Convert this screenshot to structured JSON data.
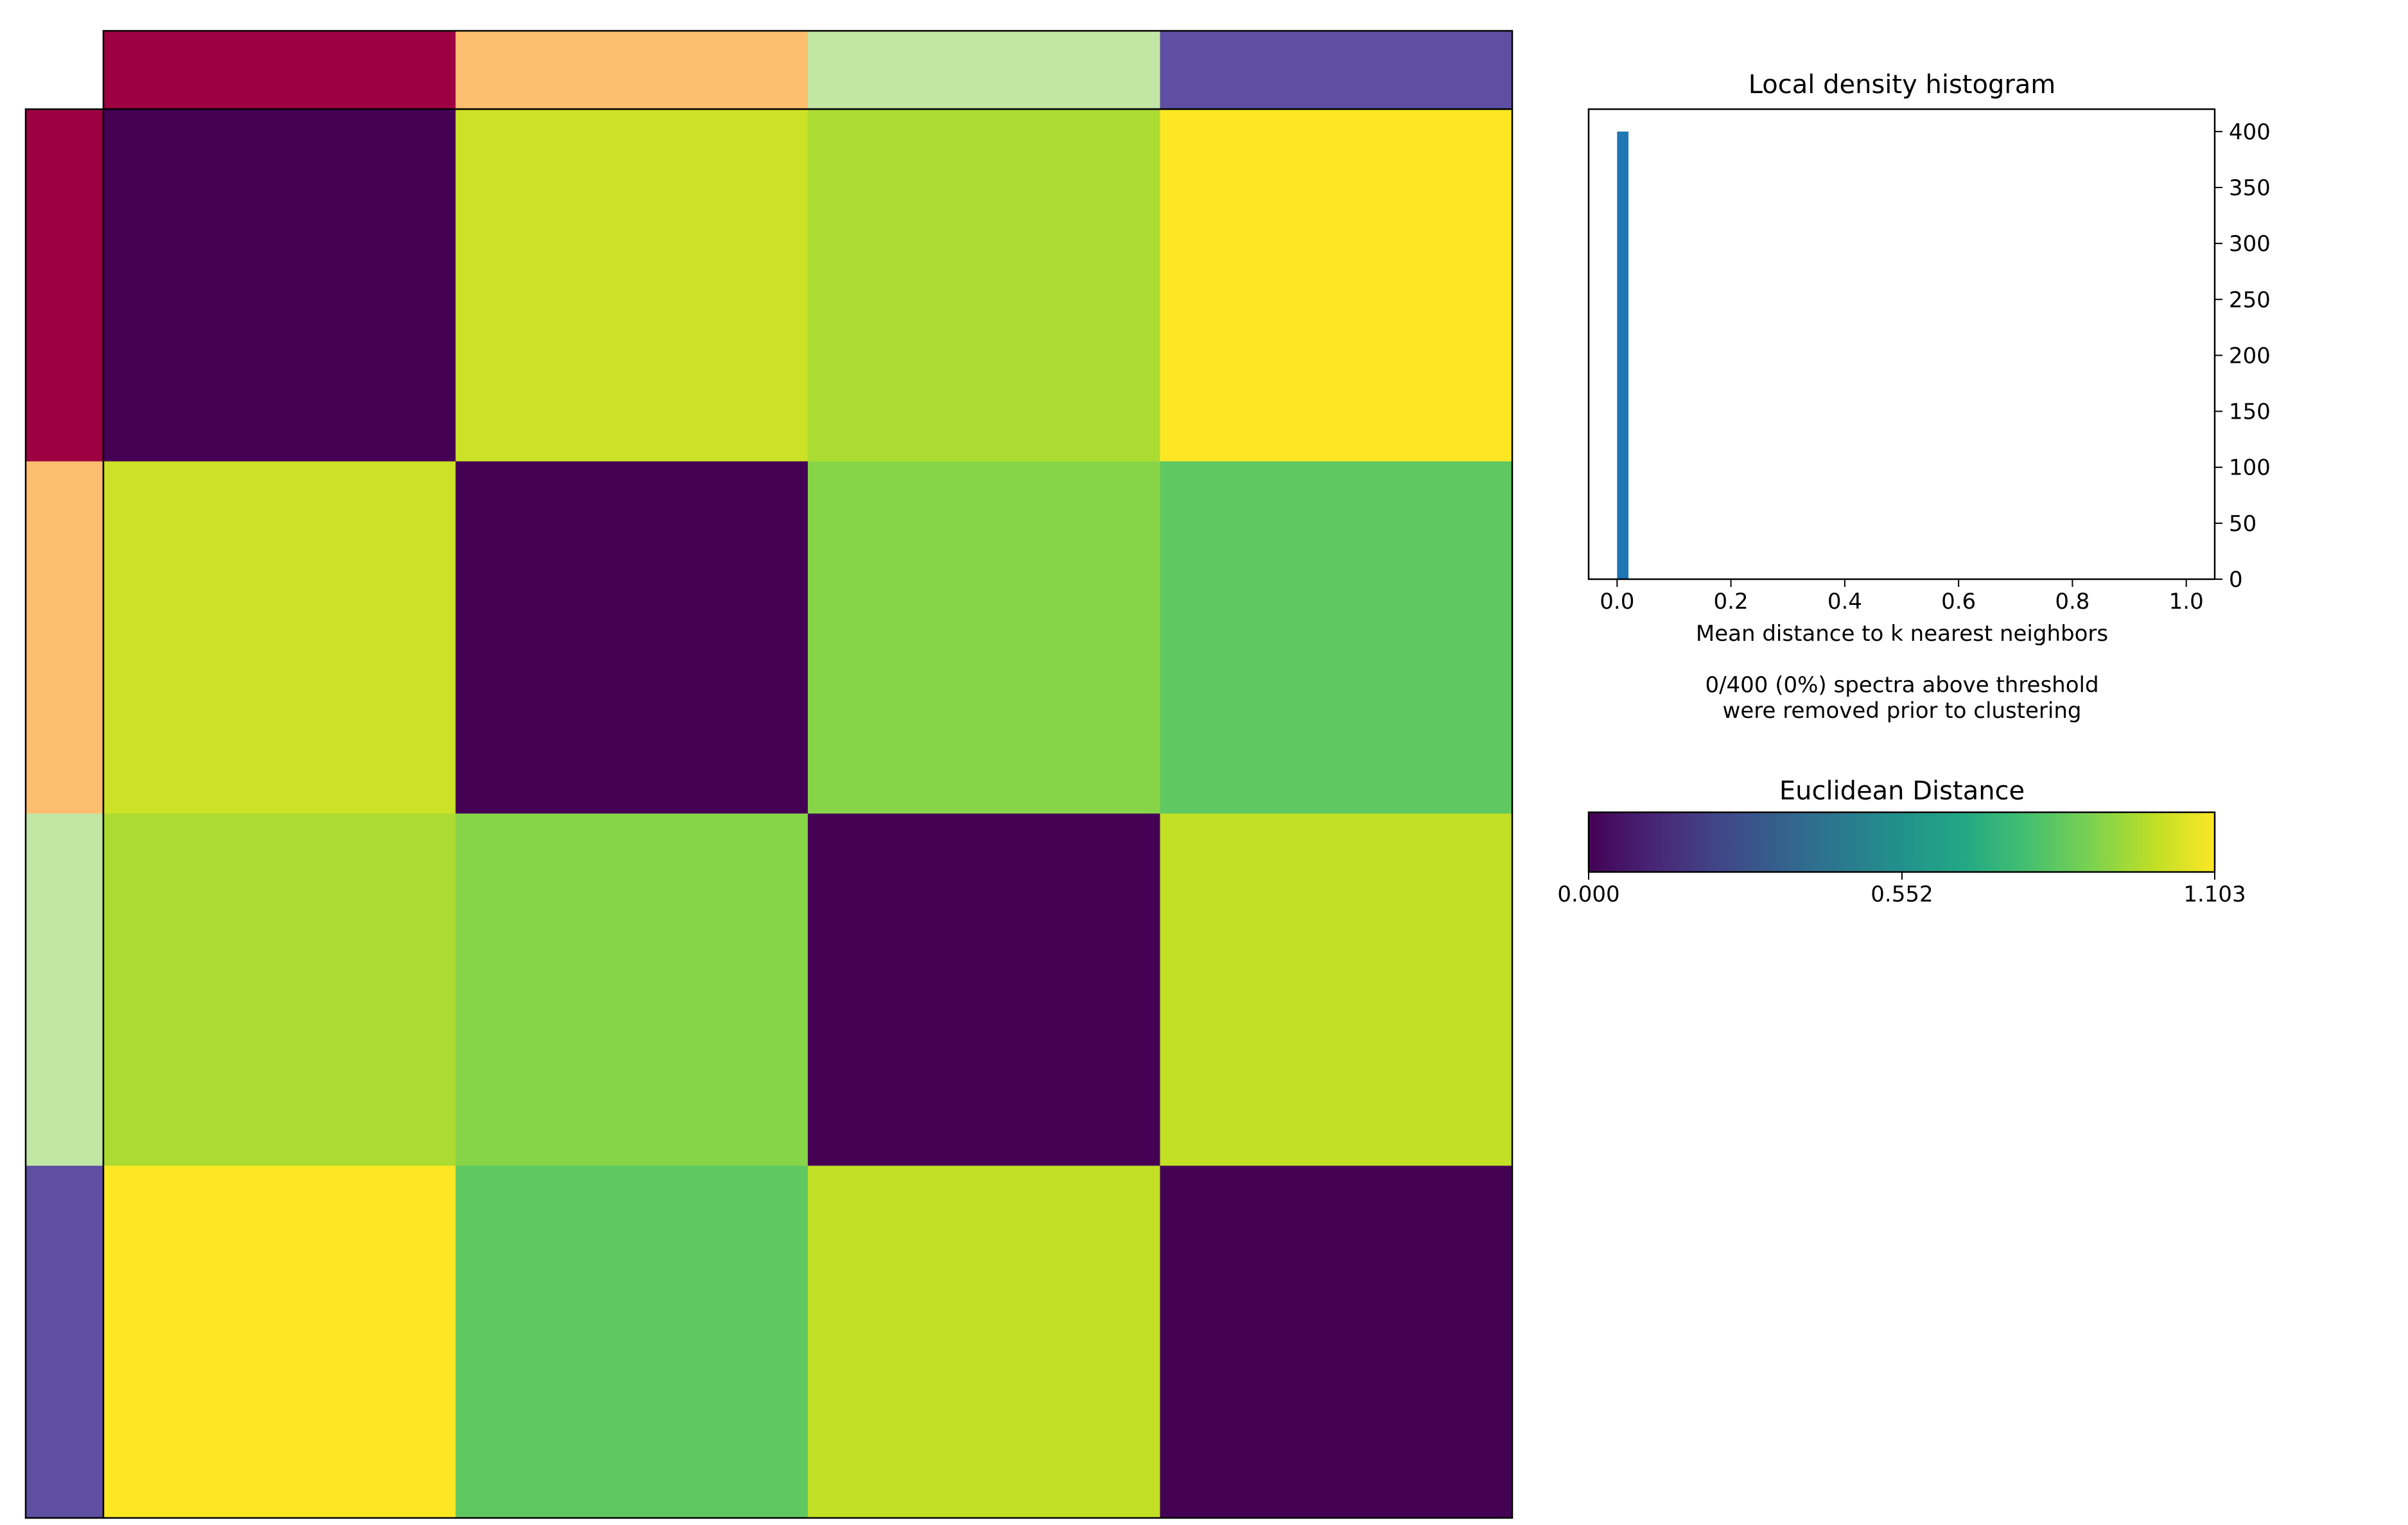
{
  "chart_data": [
    {
      "type": "heatmap",
      "title": "",
      "xlabel": "",
      "ylabel": "",
      "rows": 4,
      "cols": 4,
      "values": [
        [
          0.0,
          1.02,
          0.965,
          1.103
        ],
        [
          1.02,
          0.0,
          0.905,
          0.83
        ],
        [
          0.965,
          0.905,
          0.0,
          1.0
        ],
        [
          1.103,
          0.83,
          1.0,
          0.0
        ]
      ],
      "cluster_colors": [
        "#9e0142",
        "#fdbf6f",
        "#c2e6a4",
        "#5e4fa2"
      ],
      "color_range": [
        0.0,
        1.103
      ]
    },
    {
      "type": "bar",
      "title": "Local density histogram",
      "xlabel": "Mean distance to k nearest neighbors",
      "ylabel": "",
      "note_lines": [
        "0/400 (0%) spectra above threshold",
        "were removed prior to clustering"
      ],
      "xlim": [
        -0.05,
        1.05
      ],
      "ylim": [
        0,
        420
      ],
      "x_ticks": [
        "0.0",
        "0.2",
        "0.4",
        "0.6",
        "0.8",
        "1.0"
      ],
      "y_ticks": [
        "0",
        "50",
        "100",
        "150",
        "200",
        "250",
        "300",
        "350",
        "400"
      ],
      "bins": [
        {
          "x0": 0.0,
          "x1": 0.02,
          "count": 400
        }
      ],
      "bar_color": "#1f77b4"
    },
    {
      "type": "colorbar",
      "title": "Euclidean Distance",
      "colormap": "viridis",
      "range": [
        0.0,
        1.103
      ],
      "tick_labels": [
        "0.000",
        "0.552",
        "1.103"
      ],
      "tick_values": [
        0.0,
        0.552,
        1.103
      ]
    }
  ]
}
